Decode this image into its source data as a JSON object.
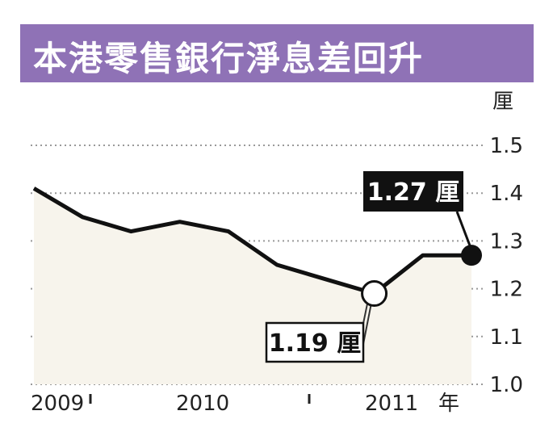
{
  "chart_data": {
    "type": "line",
    "title": "本港零售銀行淨息差回升",
    "y_unit": "厘",
    "x_unit": "年",
    "ylim": [
      1.0,
      1.5
    ],
    "y_ticks": [
      "1.5",
      "1.4",
      "1.3",
      "1.2",
      "1.1",
      "1.0"
    ],
    "x_ticks": [
      "2009",
      "2010",
      "2011"
    ],
    "grid": "horizontal dotted",
    "series": [
      {
        "x": [
          2009.0,
          2009.25,
          2009.5,
          2009.75,
          2010.0,
          2010.25,
          2010.5,
          2010.75,
          2011.0,
          2011.25
        ],
        "values": [
          1.41,
          1.35,
          1.32,
          1.34,
          1.32,
          1.25,
          1.22,
          1.19,
          1.27,
          1.27
        ],
        "color": "#111111"
      }
    ],
    "callouts": [
      {
        "label": "1.19 厘",
        "value": 1.19,
        "style": "light"
      },
      {
        "label": "1.27 厘",
        "value": 1.27,
        "style": "dark"
      }
    ]
  },
  "colors": {
    "title_bg": "#8f72b6",
    "area_fill": "#f7f4ec",
    "line": "#111111",
    "grid": "#999999"
  }
}
